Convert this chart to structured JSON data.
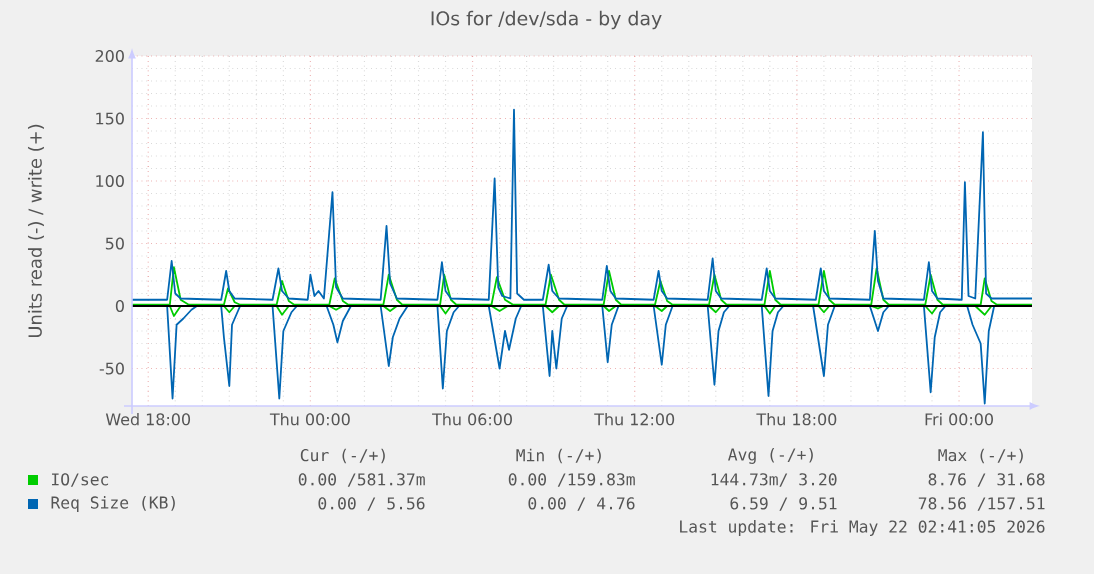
{
  "chart_data": {
    "type": "line",
    "title": "IOs for /dev/sda - by day",
    "ylabel": "Units read (-) / write (+)",
    "xlim": [
      "2026-05-20T17:24",
      "2026-05-22T02:42"
    ],
    "ylim": [
      -80,
      200
    ],
    "xticks": [
      {
        "value": "2026-05-20T18:00",
        "label": "Wed 18:00"
      },
      {
        "value": "2026-05-21T00:00",
        "label": "Thu 00:00"
      },
      {
        "value": "2026-05-21T06:00",
        "label": "Thu 06:00"
      },
      {
        "value": "2026-05-21T12:00",
        "label": "Thu 12:00"
      },
      {
        "value": "2026-05-21T18:00",
        "label": "Thu 18:00"
      },
      {
        "value": "2026-05-22T00:00",
        "label": "Fri 00:00"
      }
    ],
    "yticks": [
      -50,
      0,
      50,
      100,
      150,
      200
    ],
    "grid": true,
    "legend": "bottom",
    "ref_lines": [
      {
        "axis": "y",
        "value": 0,
        "color": "#000000"
      }
    ],
    "series": [
      {
        "name": "IO/sec",
        "color": "#00cc00",
        "x": [
          "2026-05-20T17:24",
          "2026-05-20T18:48",
          "2026-05-20T18:57",
          "2026-05-20T19:12",
          "2026-05-20T19:30",
          "2026-05-20T20:48",
          "2026-05-20T20:57",
          "2026-05-20T21:12",
          "2026-05-20T21:24",
          "2026-05-20T22:45",
          "2026-05-20T22:57",
          "2026-05-20T23:12",
          "2026-05-20T23:24",
          "2026-05-21T00:42",
          "2026-05-21T00:54",
          "2026-05-21T01:12",
          "2026-05-21T01:24",
          "2026-05-21T02:42",
          "2026-05-21T02:54",
          "2026-05-21T03:12",
          "2026-05-21T03:24",
          "2026-05-21T04:48",
          "2026-05-21T04:57",
          "2026-05-21T05:12",
          "2026-05-21T05:24",
          "2026-05-21T06:42",
          "2026-05-21T06:54",
          "2026-05-21T07:12",
          "2026-05-21T07:30",
          "2026-05-21T08:42",
          "2026-05-21T08:54",
          "2026-05-21T09:12",
          "2026-05-21T09:24",
          "2026-05-21T10:51",
          "2026-05-21T11:03",
          "2026-05-21T11:18",
          "2026-05-21T11:30",
          "2026-05-21T12:45",
          "2026-05-21T12:57",
          "2026-05-21T13:12",
          "2026-05-21T13:24",
          "2026-05-21T14:45",
          "2026-05-21T14:57",
          "2026-05-21T15:12",
          "2026-05-21T15:24",
          "2026-05-21T16:48",
          "2026-05-21T17:00",
          "2026-05-21T17:12",
          "2026-05-21T17:24",
          "2026-05-21T18:48",
          "2026-05-21T19:00",
          "2026-05-21T19:12",
          "2026-05-21T19:24",
          "2026-05-21T20:45",
          "2026-05-21T20:57",
          "2026-05-21T21:12",
          "2026-05-21T21:24",
          "2026-05-21T22:45",
          "2026-05-21T22:57",
          "2026-05-21T23:12",
          "2026-05-21T23:24",
          "2026-05-22T00:48",
          "2026-05-22T00:57",
          "2026-05-22T01:12",
          "2026-05-22T01:24",
          "2026-05-22T02:42"
        ],
        "values": [
          1,
          1,
          31,
          5,
          1,
          1,
          14,
          3,
          1,
          1,
          20,
          4,
          1,
          1,
          22,
          4,
          1,
          1,
          25,
          5,
          1,
          1,
          25,
          5,
          1,
          1,
          23,
          5,
          1,
          1,
          25,
          5,
          1,
          1,
          28,
          5,
          1,
          1,
          20,
          4,
          1,
          1,
          25,
          5,
          1,
          1,
          28,
          5,
          1,
          1,
          28,
          5,
          1,
          1,
          30,
          5,
          1,
          1,
          25,
          5,
          1,
          1,
          22,
          4,
          1,
          1
        ]
      },
      {
        "color": "#00cc00",
        "x": [
          "2026-05-20T17:24",
          "2026-05-20T18:48",
          "2026-05-20T18:57",
          "2026-05-20T19:12",
          "2026-05-20T20:48",
          "2026-05-20T21:00",
          "2026-05-20T21:12",
          "2026-05-20T22:45",
          "2026-05-20T22:57",
          "2026-05-20T23:12",
          "2026-05-21T00:42",
          "2026-05-21T00:57",
          "2026-05-21T01:12",
          "2026-05-21T02:42",
          "2026-05-21T02:57",
          "2026-05-21T03:12",
          "2026-05-21T04:48",
          "2026-05-21T05:00",
          "2026-05-21T05:12",
          "2026-05-21T06:42",
          "2026-05-21T07:00",
          "2026-05-21T07:18",
          "2026-05-21T08:42",
          "2026-05-21T08:57",
          "2026-05-21T09:12",
          "2026-05-21T10:51",
          "2026-05-21T11:03",
          "2026-05-21T11:18",
          "2026-05-21T12:45",
          "2026-05-21T13:00",
          "2026-05-21T13:12",
          "2026-05-21T14:45",
          "2026-05-21T15:00",
          "2026-05-21T15:12",
          "2026-05-21T16:48",
          "2026-05-21T17:00",
          "2026-05-21T17:12",
          "2026-05-21T18:48",
          "2026-05-21T19:00",
          "2026-05-21T19:12",
          "2026-05-21T20:45",
          "2026-05-21T21:00",
          "2026-05-21T21:12",
          "2026-05-21T22:45",
          "2026-05-21T23:00",
          "2026-05-21T23:12",
          "2026-05-22T00:36",
          "2026-05-22T00:57",
          "2026-05-22T01:12",
          "2026-05-22T02:42"
        ],
        "values": [
          0,
          0,
          -8,
          0,
          0,
          -5,
          0,
          0,
          -7,
          0,
          0,
          -3,
          0,
          0,
          -4,
          0,
          0,
          -6,
          0,
          0,
          -4,
          0,
          0,
          -5,
          0,
          0,
          -4,
          0,
          0,
          -4,
          0,
          0,
          -5,
          0,
          0,
          -6,
          0,
          0,
          -5,
          0,
          0,
          -2,
          0,
          0,
          -6,
          0,
          0,
          -7,
          0,
          0
        ]
      },
      {
        "name": "Req Size (KB)",
        "color": "#0066b3",
        "x": [
          "2026-05-20T17:24",
          "2026-05-20T18:42",
          "2026-05-20T18:52",
          "2026-05-20T19:00",
          "2026-05-20T19:12",
          "2026-05-20T20:42",
          "2026-05-20T20:53",
          "2026-05-20T21:00",
          "2026-05-20T21:12",
          "2026-05-20T22:36",
          "2026-05-20T22:49",
          "2026-05-20T22:57",
          "2026-05-20T23:12",
          "2026-05-20T23:54",
          "2026-05-21T00:00",
          "2026-05-21T00:09",
          "2026-05-21T00:18",
          "2026-05-21T00:30",
          "2026-05-21T00:49",
          "2026-05-21T00:57",
          "2026-05-21T01:12",
          "2026-05-21T02:36",
          "2026-05-21T02:49",
          "2026-05-21T02:57",
          "2026-05-21T03:12",
          "2026-05-21T04:42",
          "2026-05-21T04:52",
          "2026-05-21T05:00",
          "2026-05-21T05:12",
          "2026-05-21T06:36",
          "2026-05-21T06:49",
          "2026-05-21T06:57",
          "2026-05-21T07:06",
          "2026-05-21T07:24",
          "2026-05-21T07:32",
          "2026-05-21T07:39",
          "2026-05-21T07:54",
          "2026-05-21T08:36",
          "2026-05-21T08:49",
          "2026-05-21T08:57",
          "2026-05-21T09:12",
          "2026-05-21T10:48",
          "2026-05-21T10:58",
          "2026-05-21T11:06",
          "2026-05-21T11:18",
          "2026-05-21T12:42",
          "2026-05-21T12:53",
          "2026-05-21T13:00",
          "2026-05-21T13:12",
          "2026-05-21T14:42",
          "2026-05-21T14:53",
          "2026-05-21T15:00",
          "2026-05-21T15:12",
          "2026-05-21T16:42",
          "2026-05-21T16:53",
          "2026-05-21T17:00",
          "2026-05-21T17:12",
          "2026-05-21T18:42",
          "2026-05-21T18:53",
          "2026-05-21T19:00",
          "2026-05-21T19:12",
          "2026-05-21T20:42",
          "2026-05-21T20:53",
          "2026-05-21T21:00",
          "2026-05-21T21:12",
          "2026-05-21T22:42",
          "2026-05-21T22:53",
          "2026-05-21T23:00",
          "2026-05-21T23:12",
          "2026-05-22T00:06",
          "2026-05-22T00:13",
          "2026-05-22T00:21",
          "2026-05-22T00:36",
          "2026-05-22T00:53",
          "2026-05-22T01:00",
          "2026-05-22T01:12",
          "2026-05-22T02:42"
        ],
        "values": [
          5,
          5,
          36,
          10,
          6,
          5,
          28,
          12,
          6,
          5,
          30,
          12,
          6,
          5,
          25,
          8,
          12,
          6,
          91,
          15,
          6,
          5,
          64,
          18,
          6,
          5,
          35,
          12,
          6,
          5,
          102,
          15,
          8,
          6,
          157,
          10,
          5,
          5,
          33,
          12,
          6,
          5,
          32,
          12,
          6,
          5,
          28,
          12,
          6,
          5,
          38,
          12,
          6,
          5,
          30,
          12,
          6,
          5,
          30,
          12,
          6,
          5,
          60,
          20,
          6,
          5,
          35,
          12,
          6,
          5,
          99,
          8,
          6,
          139,
          10,
          6,
          6
        ]
      },
      {
        "color": "#0066b3",
        "x": [
          "2026-05-20T17:24",
          "2026-05-20T18:42",
          "2026-05-20T18:54",
          "2026-05-20T19:03",
          "2026-05-20T19:18",
          "2026-05-20T19:36",
          "2026-05-20T19:48",
          "2026-05-20T20:42",
          "2026-05-20T20:48",
          "2026-05-20T21:00",
          "2026-05-20T21:06",
          "2026-05-20T21:24",
          "2026-05-20T22:36",
          "2026-05-20T22:51",
          "2026-05-20T23:00",
          "2026-05-20T23:18",
          "2026-05-20T23:30",
          "2026-05-21T00:36",
          "2026-05-21T00:51",
          "2026-05-21T01:00",
          "2026-05-21T01:12",
          "2026-05-21T01:30",
          "2026-05-21T02:36",
          "2026-05-21T02:54",
          "2026-05-21T03:03",
          "2026-05-21T03:18",
          "2026-05-21T03:36",
          "2026-05-21T04:42",
          "2026-05-21T04:54",
          "2026-05-21T05:03",
          "2026-05-21T05:18",
          "2026-05-21T05:30",
          "2026-05-21T06:36",
          "2026-05-21T07:00",
          "2026-05-21T07:12",
          "2026-05-21T07:21",
          "2026-05-21T07:36",
          "2026-05-21T07:48",
          "2026-05-21T08:36",
          "2026-05-21T08:51",
          "2026-05-21T08:57",
          "2026-05-21T09:06",
          "2026-05-21T09:18",
          "2026-05-21T09:30",
          "2026-05-21T10:48",
          "2026-05-21T11:00",
          "2026-05-21T11:09",
          "2026-05-21T11:24",
          "2026-05-21T12:42",
          "2026-05-21T13:00",
          "2026-05-21T13:09",
          "2026-05-21T13:24",
          "2026-05-21T14:42",
          "2026-05-21T14:57",
          "2026-05-21T15:06",
          "2026-05-21T15:18",
          "2026-05-21T15:30",
          "2026-05-21T16:42",
          "2026-05-21T16:57",
          "2026-05-21T17:06",
          "2026-05-21T17:18",
          "2026-05-21T17:30",
          "2026-05-21T18:36",
          "2026-05-21T19:00",
          "2026-05-21T19:09",
          "2026-05-21T19:24",
          "2026-05-21T20:42",
          "2026-05-21T21:00",
          "2026-05-21T21:12",
          "2026-05-21T21:24",
          "2026-05-21T22:42",
          "2026-05-21T22:57",
          "2026-05-21T23:06",
          "2026-05-21T23:18",
          "2026-05-21T23:30",
          "2026-05-22T00:18",
          "2026-05-22T00:30",
          "2026-05-22T00:48",
          "2026-05-22T00:57",
          "2026-05-22T01:06",
          "2026-05-22T01:18",
          "2026-05-22T02:42"
        ],
        "values": [
          0,
          0,
          -74,
          -15,
          -10,
          -3,
          0,
          0,
          -25,
          -64,
          -15,
          0,
          0,
          -74,
          -20,
          -5,
          0,
          0,
          -15,
          -29,
          -12,
          0,
          0,
          -48,
          -25,
          -10,
          0,
          0,
          -66,
          -20,
          -5,
          0,
          0,
          -50,
          -20,
          -35,
          -10,
          0,
          0,
          -56,
          -20,
          -50,
          -10,
          0,
          0,
          -45,
          -15,
          0,
          0,
          -47,
          -15,
          0,
          0,
          -63,
          -20,
          -5,
          0,
          0,
          -72,
          -20,
          -5,
          0,
          0,
          -56,
          -15,
          0,
          0,
          -20,
          -5,
          0,
          0,
          -69,
          -25,
          -5,
          0,
          0,
          -15,
          -30,
          -78,
          -20,
          0,
          0
        ]
      }
    ],
    "annotations": [
      "Cur (-/+)",
      "Min (-/+)",
      "Avg (-/+)",
      "Max (-/+)",
      "0.00 /581.37m",
      "0.00 /159.83m",
      "144.73m/  3.20",
      "8.76 / 31.68",
      "0.00 /  5.56",
      "0.00 /  4.76",
      "6.59 /  9.51",
      "78.56 /157.51",
      "Last update: Fri May 22 02:41:05 2026"
    ]
  }
}
